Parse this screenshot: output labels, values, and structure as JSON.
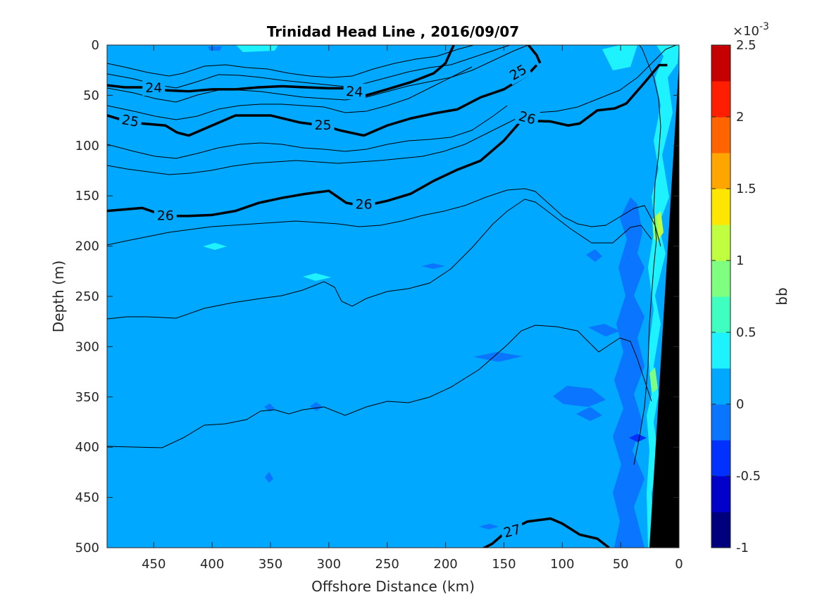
{
  "chart_data": {
    "type": "contourf",
    "title": "Trinidad Head Line , 2016/09/07",
    "xlabel": "Offshore Distance (km)",
    "ylabel": "Depth (m)",
    "xlim": [
      490,
      0
    ],
    "x_direction": "reversed",
    "ylim": [
      0,
      500
    ],
    "y_direction": "reversed",
    "x_ticks": [
      450,
      400,
      350,
      300,
      250,
      200,
      150,
      100,
      50,
      0
    ],
    "y_ticks": [
      0,
      50,
      100,
      150,
      200,
      250,
      300,
      350,
      400,
      450,
      500
    ],
    "grid": false,
    "colorbar": {
      "label": "bb",
      "exponent_label": "×10",
      "exponent_power": "-3",
      "range": [
        -1,
        2.5
      ],
      "ticks": [
        -1,
        -0.5,
        0,
        0.5,
        1,
        1.5,
        2,
        2.5
      ],
      "tick_labels": [
        "-1",
        "-0.5",
        "0",
        "0.5",
        "1",
        "1.5",
        "2",
        "2.5"
      ],
      "level_colors": [
        "#00007f",
        "#0000c8",
        "#0031ff",
        "#0a76ff",
        "#00a8ff",
        "#1ff2ff",
        "#3fffc0",
        "#7fff7f",
        "#c0ff3f",
        "#ffe600",
        "#ffa500",
        "#ff6400",
        "#ff1e00",
        "#c40000"
      ]
    },
    "dominant_value": 0.1,
    "density_contours": [
      {
        "level": 24,
        "label": "24",
        "points": [
          [
            490,
            40
          ],
          [
            475,
            42
          ],
          [
            460,
            42
          ],
          [
            440,
            45
          ],
          [
            420,
            46
          ],
          [
            400,
            44
          ],
          [
            380,
            44
          ],
          [
            360,
            42
          ],
          [
            340,
            41
          ],
          [
            320,
            42
          ],
          [
            300,
            43
          ],
          [
            285,
            43
          ],
          [
            268,
            50
          ],
          [
            250,
            44
          ],
          [
            230,
            37
          ],
          [
            210,
            28
          ],
          [
            200,
            18
          ],
          [
            195,
            5
          ],
          [
            193,
            0
          ]
        ]
      },
      {
        "level": 24,
        "label": "",
        "points": [
          [
            129,
            0
          ],
          [
            122,
            10
          ],
          [
            119,
            18
          ]
        ]
      },
      {
        "level": 25,
        "label": "25",
        "points": [
          [
            490,
            70
          ],
          [
            470,
            77
          ],
          [
            440,
            80
          ],
          [
            430,
            87
          ],
          [
            420,
            90
          ],
          [
            400,
            80
          ],
          [
            380,
            70
          ],
          [
            350,
            70
          ],
          [
            325,
            77
          ],
          [
            305,
            80
          ],
          [
            290,
            85
          ],
          [
            270,
            90
          ],
          [
            250,
            80
          ],
          [
            230,
            73
          ],
          [
            210,
            68
          ],
          [
            190,
            64
          ],
          [
            170,
            52
          ],
          [
            150,
            44
          ],
          [
            130,
            30
          ],
          [
            122,
            20
          ]
        ]
      },
      {
        "level": 26,
        "label": "26",
        "points": [
          [
            490,
            165
          ],
          [
            460,
            162
          ],
          [
            440,
            170
          ],
          [
            420,
            170
          ],
          [
            400,
            169
          ],
          [
            380,
            165
          ],
          [
            360,
            157
          ],
          [
            340,
            152
          ],
          [
            320,
            148
          ],
          [
            300,
            145
          ],
          [
            285,
            157
          ],
          [
            270,
            160
          ],
          [
            250,
            155
          ],
          [
            230,
            148
          ],
          [
            210,
            135
          ],
          [
            190,
            124
          ],
          [
            170,
            115
          ],
          [
            150,
            95
          ],
          [
            135,
            75
          ],
          [
            110,
            76
          ],
          [
            95,
            80
          ],
          [
            85,
            78
          ],
          [
            70,
            65
          ],
          [
            55,
            63
          ],
          [
            45,
            58
          ],
          [
            30,
            38
          ],
          [
            17,
            20
          ],
          [
            10,
            20
          ]
        ]
      },
      {
        "level": 27,
        "label": "27",
        "points": [
          [
            170,
            502
          ],
          [
            160,
            496
          ],
          [
            150,
            486
          ],
          [
            130,
            474
          ],
          [
            110,
            471
          ],
          [
            100,
            476
          ],
          [
            85,
            487
          ],
          [
            70,
            491
          ],
          [
            60,
            500
          ]
        ]
      }
    ]
  }
}
